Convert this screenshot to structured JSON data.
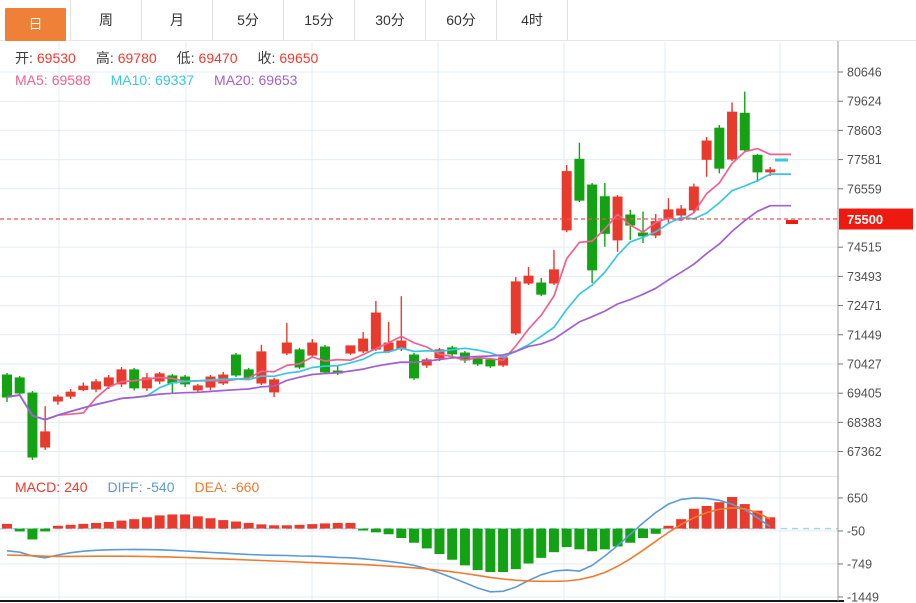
{
  "tabs": [
    {
      "key": "day",
      "label": "日",
      "active": true
    },
    {
      "key": "week",
      "label": "周",
      "active": false
    },
    {
      "key": "month",
      "label": "月",
      "active": false
    },
    {
      "key": "5min",
      "label": "5分",
      "active": false
    },
    {
      "key": "15min",
      "label": "15分",
      "active": false
    },
    {
      "key": "30min",
      "label": "30分",
      "active": false
    },
    {
      "key": "60min",
      "label": "60分",
      "active": false
    },
    {
      "key": "4hour",
      "label": "4时",
      "active": false
    }
  ],
  "ohlc_info": [
    {
      "label": "开:",
      "value": "69530"
    },
    {
      "label": "高:",
      "value": "69780"
    },
    {
      "label": "低:",
      "value": "69470"
    },
    {
      "label": "收:",
      "value": "69650"
    }
  ],
  "ma_info": [
    {
      "label": "MA5:",
      "value": "69588",
      "color": "#f2608e"
    },
    {
      "label": "MA10:",
      "value": "69337",
      "color": "#38c7e3"
    },
    {
      "label": "MA20:",
      "value": "69653",
      "color": "#a35fd0"
    }
  ],
  "macd_info": [
    {
      "label": "MACD:",
      "value": "240",
      "color": "#ef392d"
    },
    {
      "label": "DIFF:",
      "value": "-540",
      "color": "#5b9bd5"
    },
    {
      "label": "DEA:",
      "value": "-660",
      "color": "#ee7c2f"
    }
  ],
  "colors": {
    "up": "#e83a2d",
    "down": "#13a213",
    "ma5": "#f2608e",
    "ma10": "#38c7e3",
    "ma20": "#a35fd0",
    "diff": "#5b9bd5",
    "dea": "#ee7c2f",
    "grid": "#e3ecf4",
    "axis_line": "#9a9a9a",
    "axis_text": "#4f4f4f",
    "label_text": "#3b3b3b",
    "value_red": "#ef392d",
    "tab_active_bg": "#ef8038",
    "price_line": "#f4524d",
    "badge_bg": "#ef1a0f",
    "badge_text": "#ffffff",
    "zero_line": "#a5d8e6",
    "pane_border": "#e4e4e4",
    "bottom_line": "#1a1a1a"
  },
  "chart_data": {
    "type": "candlestick+macd",
    "price_axis_ticks": [
      80646,
      79624,
      78603,
      77581,
      76559,
      74515,
      73493,
      72471,
      71449,
      70427,
      69405,
      68383,
      67362
    ],
    "current_price": 75500,
    "current_price_label": "75500",
    "macd_axis_ticks": [
      650,
      -50,
      -749,
      -1449
    ],
    "ma_periods": [
      5,
      10,
      20
    ],
    "legend": {
      "ohlc": "开高低收",
      "ma": [
        "MA5",
        "MA10",
        "MA20"
      ],
      "macd": [
        "MACD",
        "DIFF",
        "DEA"
      ]
    },
    "candles": [
      [
        70040,
        70110,
        69100,
        69270
      ],
      [
        69940,
        70010,
        69300,
        69410
      ],
      [
        69410,
        69480,
        67070,
        67170
      ],
      [
        67520,
        68950,
        67420,
        68050
      ],
      [
        69130,
        69350,
        69000,
        69270
      ],
      [
        69300,
        69550,
        69200,
        69440
      ],
      [
        69530,
        69780,
        69470,
        69650
      ],
      [
        69550,
        69900,
        69440,
        69800
      ],
      [
        69660,
        70040,
        69550,
        69940
      ],
      [
        69730,
        70320,
        69620,
        70220
      ],
      [
        70220,
        70290,
        69500,
        69590
      ],
      [
        69590,
        70110,
        69480,
        69940
      ],
      [
        69830,
        70150,
        69720,
        70080
      ],
      [
        70010,
        70080,
        69410,
        69760
      ],
      [
        69970,
        70040,
        69620,
        69730
      ],
      [
        69520,
        69730,
        69410,
        69660
      ],
      [
        69620,
        70040,
        69510,
        69970
      ],
      [
        69760,
        70150,
        69690,
        70040
      ],
      [
        70740,
        70810,
        69970,
        70040
      ],
      [
        70220,
        70290,
        69900,
        69970
      ],
      [
        69760,
        71100,
        69690,
        70850
      ],
      [
        69450,
        69940,
        69270,
        69870
      ],
      [
        70810,
        71860,
        70740,
        71160
      ],
      [
        70920,
        70990,
        70250,
        70320
      ],
      [
        70740,
        71300,
        70640,
        71160
      ],
      [
        71020,
        71090,
        70080,
        70150
      ],
      [
        70180,
        70360,
        70040,
        70110
      ],
      [
        70810,
        71060,
        70740,
        71060
      ],
      [
        70880,
        71550,
        70810,
        71300
      ],
      [
        70950,
        72630,
        70880,
        72210
      ],
      [
        70880,
        71900,
        70810,
        71160
      ],
      [
        70950,
        72800,
        70880,
        71230
      ],
      [
        70740,
        70810,
        69870,
        69940
      ],
      [
        70390,
        70640,
        70290,
        70570
      ],
      [
        70640,
        70990,
        70530,
        70920
      ],
      [
        70990,
        71060,
        70710,
        70780
      ],
      [
        70810,
        70880,
        70460,
        70570
      ],
      [
        70600,
        70670,
        70360,
        70430
      ],
      [
        70570,
        70640,
        70290,
        70360
      ],
      [
        70390,
        70710,
        70320,
        70640
      ],
      [
        71510,
        73470,
        71440,
        73300
      ],
      [
        73260,
        73820,
        73190,
        73500
      ],
      [
        73260,
        73440,
        72800,
        72870
      ],
      [
        73260,
        74420,
        73190,
        73720
      ],
      [
        75120,
        77390,
        75040,
        77160
      ],
      [
        77590,
        78170,
        76090,
        76160
      ],
      [
        76690,
        76760,
        73260,
        73720
      ],
      [
        76280,
        76760,
        74530,
        75000
      ],
      [
        74770,
        76340,
        74350,
        76270
      ],
      [
        75640,
        75820,
        74770,
        75290
      ],
      [
        75010,
        75760,
        74660,
        74910
      ],
      [
        74940,
        75680,
        74830,
        75410
      ],
      [
        75530,
        76230,
        75360,
        75820
      ],
      [
        75640,
        75990,
        75430,
        75850
      ],
      [
        75820,
        76740,
        75710,
        76620
      ],
      [
        77590,
        78370,
        76980,
        78230
      ],
      [
        78680,
        78790,
        77100,
        77280
      ],
      [
        77600,
        79580,
        77530,
        79240
      ],
      [
        79200,
        79960,
        77860,
        77920
      ],
      [
        77730,
        77780,
        76800,
        77150
      ],
      [
        77150,
        77320,
        77010,
        77220
      ]
    ],
    "macd_hist": [
      100,
      -60,
      -230,
      -60,
      60,
      80,
      100,
      120,
      140,
      170,
      200,
      240,
      280,
      300,
      300,
      260,
      220,
      180,
      150,
      120,
      90,
      70,
      70,
      80,
      95,
      110,
      120,
      120,
      -40,
      -80,
      -120,
      -200,
      -300,
      -420,
      -540,
      -660,
      -780,
      -880,
      -920,
      -920,
      -860,
      -740,
      -620,
      -500,
      -390,
      -440,
      -480,
      -440,
      -380,
      -300,
      -200,
      -110,
      60,
      200,
      420,
      480,
      560,
      670,
      520,
      380,
      240
    ],
    "diff_line": [
      -470,
      -500,
      -580,
      -620,
      -560,
      -510,
      -480,
      -460,
      -450,
      -445,
      -440,
      -445,
      -450,
      -460,
      -475,
      -490,
      -505,
      -520,
      -535,
      -550,
      -560,
      -565,
      -570,
      -580,
      -585,
      -595,
      -610,
      -620,
      -640,
      -665,
      -695,
      -730,
      -780,
      -850,
      -940,
      -1040,
      -1150,
      -1260,
      -1340,
      -1330,
      -1240,
      -1100,
      -980,
      -900,
      -880,
      -900,
      -780,
      -580,
      -360,
      -120,
      120,
      340,
      520,
      620,
      650,
      640,
      600,
      520,
      400,
      230,
      40
    ],
    "dea_line": [
      -560,
      -565,
      -575,
      -585,
      -590,
      -590,
      -588,
      -586,
      -585,
      -585,
      -588,
      -592,
      -598,
      -605,
      -613,
      -622,
      -632,
      -643,
      -654,
      -665,
      -676,
      -687,
      -698,
      -709,
      -720,
      -731,
      -742,
      -753,
      -764,
      -778,
      -794,
      -812,
      -832,
      -856,
      -884,
      -916,
      -952,
      -992,
      -1034,
      -1068,
      -1094,
      -1110,
      -1118,
      -1118,
      -1110,
      -1080,
      -1020,
      -930,
      -800,
      -640,
      -460,
      -270,
      -80,
      90,
      230,
      340,
      410,
      440,
      420,
      340,
      200
    ]
  }
}
